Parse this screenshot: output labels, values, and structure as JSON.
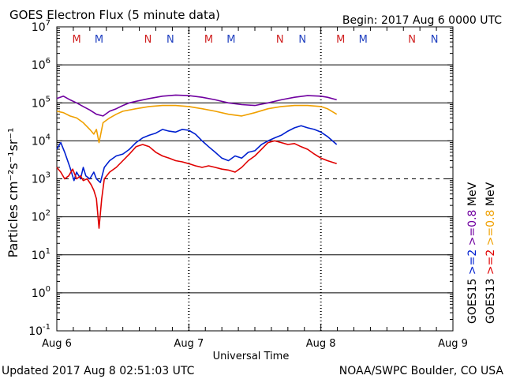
{
  "header": {
    "title": "GOES Electron Flux (5 minute data)",
    "begin": "Begin: 2017 Aug 6 0000 UTC"
  },
  "footer": {
    "updated": "Updated 2017 Aug  8 02:51:03 UTC",
    "credit": "NOAA/SWPC Boulder, CO USA"
  },
  "colors": {
    "goes13_ge2": "#e00000",
    "goes15_ge2": "#0020d0",
    "goes13_ge08": "#f0a000",
    "goes15_ge08": "#7000a0",
    "marker_m": "#d02020",
    "marker_n_blue": "#2040c0"
  },
  "chart_data": {
    "type": "line",
    "title": "GOES Electron Flux (5 minute data)",
    "xlabel": "Universal Time",
    "ylabel": "Particles cm⁻²s⁻¹sr⁻¹",
    "y_scale": "log",
    "ylim": [
      0.1,
      10000000
    ],
    "xlim_days": [
      0,
      3
    ],
    "x_tick_labels": [
      "Aug 6",
      "Aug 7",
      "Aug 8",
      "Aug 9"
    ],
    "y_tick_labels": [
      {
        "base": "10",
        "exp": "-1"
      },
      {
        "base": "10",
        "exp": "0"
      },
      {
        "base": "10",
        "exp": "1"
      },
      {
        "base": "10",
        "exp": "2"
      },
      {
        "base": "10",
        "exp": "3"
      },
      {
        "base": "10",
        "exp": "4"
      },
      {
        "base": "10",
        "exp": "5"
      },
      {
        "base": "10",
        "exp": "6"
      },
      {
        "base": "10",
        "exp": "7"
      }
    ],
    "dashed_threshold": 1000,
    "legend": {
      "rows": [
        [
          {
            "text": "GOES15",
            "color": "#000000"
          },
          {
            "text": ">=2",
            "color": "#0020d0"
          },
          {
            "text": ">=0.8",
            "color": "#7000a0"
          },
          {
            "text": "MeV",
            "color": "#000000"
          }
        ],
        [
          {
            "text": "GOES13",
            "color": "#000000"
          },
          {
            "text": ">=2",
            "color": "#e00000"
          },
          {
            "text": ">=0.8",
            "color": "#f0a000"
          },
          {
            "text": "MeV",
            "color": "#000000"
          }
        ]
      ]
    },
    "markers": [
      {
        "label": "M",
        "day": 0.15,
        "color": "#d02020"
      },
      {
        "label": "M",
        "day": 0.32,
        "color": "#2040c0"
      },
      {
        "label": "N",
        "day": 0.69,
        "color": "#d02020"
      },
      {
        "label": "N",
        "day": 0.86,
        "color": "#2040c0"
      },
      {
        "label": "M",
        "day": 1.15,
        "color": "#d02020"
      },
      {
        "label": "M",
        "day": 1.32,
        "color": "#2040c0"
      },
      {
        "label": "N",
        "day": 1.69,
        "color": "#d02020"
      },
      {
        "label": "N",
        "day": 1.86,
        "color": "#2040c0"
      },
      {
        "label": "M",
        "day": 2.15,
        "color": "#d02020"
      },
      {
        "label": "M",
        "day": 2.32,
        "color": "#2040c0"
      },
      {
        "label": "N",
        "day": 2.69,
        "color": "#d02020"
      },
      {
        "label": "N",
        "day": 2.86,
        "color": "#2040c0"
      }
    ],
    "series": [
      {
        "key": "goes15_ge08",
        "color": "#7000a0",
        "points": [
          [
            0,
            130000
          ],
          [
            0.05,
            150000
          ],
          [
            0.1,
            120000
          ],
          [
            0.15,
            100000
          ],
          [
            0.2,
            80000
          ],
          [
            0.25,
            65000
          ],
          [
            0.3,
            50000
          ],
          [
            0.35,
            45000
          ],
          [
            0.4,
            60000
          ],
          [
            0.45,
            70000
          ],
          [
            0.5,
            85000
          ],
          [
            0.55,
            100000
          ],
          [
            0.6,
            110000
          ],
          [
            0.7,
            130000
          ],
          [
            0.8,
            150000
          ],
          [
            0.9,
            160000
          ],
          [
            1.0,
            155000
          ],
          [
            1.1,
            140000
          ],
          [
            1.2,
            120000
          ],
          [
            1.3,
            100000
          ],
          [
            1.4,
            90000
          ],
          [
            1.5,
            85000
          ],
          [
            1.6,
            100000
          ],
          [
            1.7,
            120000
          ],
          [
            1.8,
            140000
          ],
          [
            1.9,
            155000
          ],
          [
            2.0,
            150000
          ],
          [
            2.05,
            140000
          ],
          [
            2.12,
            120000
          ]
        ]
      },
      {
        "key": "goes13_ge08",
        "color": "#f0a000",
        "points": [
          [
            0,
            60000
          ],
          [
            0.05,
            55000
          ],
          [
            0.1,
            45000
          ],
          [
            0.15,
            40000
          ],
          [
            0.2,
            30000
          ],
          [
            0.25,
            20000
          ],
          [
            0.28,
            15000
          ],
          [
            0.3,
            20000
          ],
          [
            0.32,
            9000
          ],
          [
            0.35,
            30000
          ],
          [
            0.4,
            40000
          ],
          [
            0.45,
            50000
          ],
          [
            0.5,
            60000
          ],
          [
            0.6,
            70000
          ],
          [
            0.7,
            80000
          ],
          [
            0.8,
            85000
          ],
          [
            0.9,
            85000
          ],
          [
            1.0,
            80000
          ],
          [
            1.1,
            70000
          ],
          [
            1.2,
            60000
          ],
          [
            1.3,
            50000
          ],
          [
            1.4,
            45000
          ],
          [
            1.5,
            55000
          ],
          [
            1.6,
            70000
          ],
          [
            1.7,
            80000
          ],
          [
            1.8,
            85000
          ],
          [
            1.9,
            85000
          ],
          [
            2.0,
            80000
          ],
          [
            2.05,
            70000
          ],
          [
            2.12,
            50000
          ]
        ]
      },
      {
        "key": "goes15_ge2",
        "color": "#0020d0",
        "points": [
          [
            0,
            6000
          ],
          [
            0.03,
            9000
          ],
          [
            0.06,
            5000
          ],
          [
            0.1,
            2000
          ],
          [
            0.13,
            900
          ],
          [
            0.15,
            1500
          ],
          [
            0.18,
            1000
          ],
          [
            0.2,
            2000
          ],
          [
            0.22,
            1200
          ],
          [
            0.25,
            1000
          ],
          [
            0.28,
            1500
          ],
          [
            0.3,
            1000
          ],
          [
            0.33,
            800
          ],
          [
            0.36,
            2000
          ],
          [
            0.4,
            3000
          ],
          [
            0.45,
            4000
          ],
          [
            0.5,
            4500
          ],
          [
            0.55,
            6000
          ],
          [
            0.6,
            9000
          ],
          [
            0.65,
            12000
          ],
          [
            0.7,
            14000
          ],
          [
            0.75,
            16000
          ],
          [
            0.8,
            20000
          ],
          [
            0.85,
            18000
          ],
          [
            0.9,
            17000
          ],
          [
            0.95,
            20000
          ],
          [
            1.0,
            19000
          ],
          [
            1.05,
            15000
          ],
          [
            1.1,
            10000
          ],
          [
            1.15,
            7000
          ],
          [
            1.2,
            5000
          ],
          [
            1.25,
            3500
          ],
          [
            1.3,
            3000
          ],
          [
            1.35,
            4000
          ],
          [
            1.4,
            3500
          ],
          [
            1.45,
            5000
          ],
          [
            1.5,
            5500
          ],
          [
            1.55,
            8000
          ],
          [
            1.6,
            10000
          ],
          [
            1.65,
            12000
          ],
          [
            1.7,
            14000
          ],
          [
            1.75,
            18000
          ],
          [
            1.8,
            22000
          ],
          [
            1.85,
            25000
          ],
          [
            1.9,
            22000
          ],
          [
            1.95,
            20000
          ],
          [
            2.0,
            17000
          ],
          [
            2.05,
            13000
          ],
          [
            2.12,
            8000
          ]
        ]
      },
      {
        "key": "goes13_ge2",
        "color": "#e00000",
        "points": [
          [
            0,
            2000
          ],
          [
            0.03,
            1500
          ],
          [
            0.06,
            1000
          ],
          [
            0.09,
            1200
          ],
          [
            0.12,
            1800
          ],
          [
            0.15,
            1000
          ],
          [
            0.18,
            1200
          ],
          [
            0.2,
            900
          ],
          [
            0.23,
            1000
          ],
          [
            0.26,
            700
          ],
          [
            0.28,
            500
          ],
          [
            0.3,
            300
          ],
          [
            0.32,
            50
          ],
          [
            0.34,
            300
          ],
          [
            0.36,
            1000
          ],
          [
            0.4,
            1500
          ],
          [
            0.45,
            2000
          ],
          [
            0.5,
            3000
          ],
          [
            0.55,
            4500
          ],
          [
            0.6,
            7000
          ],
          [
            0.65,
            8000
          ],
          [
            0.7,
            7000
          ],
          [
            0.75,
            5000
          ],
          [
            0.8,
            4000
          ],
          [
            0.85,
            3500
          ],
          [
            0.9,
            3000
          ],
          [
            0.95,
            2800
          ],
          [
            1.0,
            2500
          ],
          [
            1.05,
            2200
          ],
          [
            1.1,
            2000
          ],
          [
            1.15,
            2200
          ],
          [
            1.2,
            2000
          ],
          [
            1.25,
            1800
          ],
          [
            1.3,
            1700
          ],
          [
            1.35,
            1500
          ],
          [
            1.4,
            2000
          ],
          [
            1.45,
            3000
          ],
          [
            1.5,
            4000
          ],
          [
            1.55,
            6000
          ],
          [
            1.6,
            9000
          ],
          [
            1.65,
            10000
          ],
          [
            1.7,
            9000
          ],
          [
            1.75,
            8000
          ],
          [
            1.8,
            8500
          ],
          [
            1.85,
            7000
          ],
          [
            1.9,
            6000
          ],
          [
            1.95,
            4500
          ],
          [
            2.0,
            3500
          ],
          [
            2.05,
            3000
          ],
          [
            2.12,
            2500
          ]
        ]
      }
    ]
  }
}
